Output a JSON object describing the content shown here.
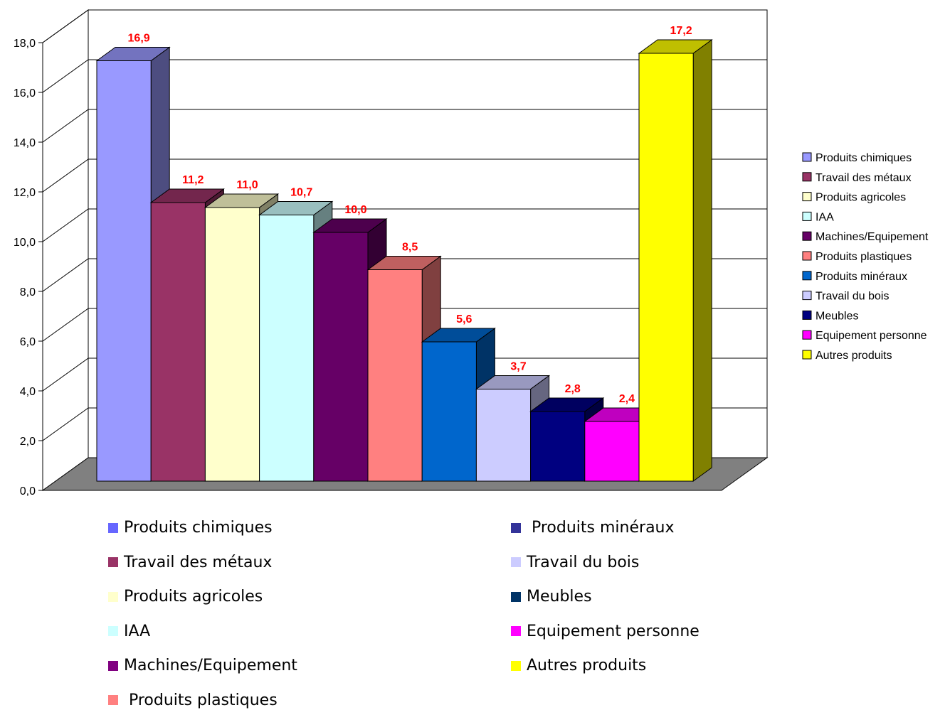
{
  "chart_data": {
    "type": "bar",
    "title": "",
    "xlabel": "",
    "ylabel": "",
    "ylim": [
      0,
      18
    ],
    "yticks": [
      "0,0",
      "2,0",
      "4,0",
      "6,0",
      "8,0",
      "10,0",
      "12,0",
      "14,0",
      "16,0",
      "18,0"
    ],
    "grid": true,
    "three_d": true,
    "categories": [
      "Produits chimiques",
      "Travail des métaux",
      "Produits agricoles",
      "IAA",
      "Machines/Equipement",
      "Produits plastiques",
      "Produits minéraux",
      "Travail du bois",
      "Meubles",
      "Equipement personne",
      "Autres produits"
    ],
    "values": [
      16.9,
      11.2,
      11.0,
      10.7,
      10.0,
      8.5,
      5.6,
      3.7,
      2.8,
      2.4,
      17.2
    ],
    "value_labels": [
      "16,9",
      "11,2",
      "11,0",
      "10,7",
      "10,0",
      "8,5",
      "5,6",
      "3,7",
      "2,8",
      "2,4",
      "17,2"
    ],
    "colors": {
      "front": [
        "#9999ff",
        "#993366",
        "#ffffcc",
        "#ccffff",
        "#660066",
        "#ff8080",
        "#0066cc",
        "#ccccff",
        "#000080",
        "#ff00ff",
        "#ffff00"
      ],
      "top": [
        "#7373bf",
        "#73264d",
        "#bfbf99",
        "#99bfbf",
        "#4d004d",
        "#bf6060",
        "#004d99",
        "#9999bf",
        "#000060",
        "#bf00bf",
        "#bfbf00"
      ],
      "side": [
        "#4d4d80",
        "#4d1a33",
        "#808066",
        "#668080",
        "#330033",
        "#804040",
        "#003366",
        "#666680",
        "#000040",
        "#800080",
        "#808000"
      ],
      "value_label": "#ff0000",
      "floor": "#808080"
    },
    "legend": {
      "placement": "right",
      "entries": [
        "Produits chimiques",
        "Travail des métaux",
        "Produits agricoles",
        "IAA",
        "Machines/Equipement",
        "Produits plastiques",
        "Produits minéraux",
        "Travail du bois",
        "Meubles",
        "Equipement personne",
        "Autres produits"
      ]
    }
  },
  "bottom_legend": {
    "left": [
      {
        "label": "Produits chimiques",
        "color": "#6666ff"
      },
      {
        "label": "Travail des métaux",
        "color": "#993366"
      },
      {
        "label": "Produits agricoles",
        "color": "#ffffcc"
      },
      {
        "label": "IAA",
        "color": "#ccffff"
      },
      {
        "label": "Machines/Equipement",
        "color": "#800080"
      },
      {
        "label": " Produits plastiques",
        "color": "#ff8080"
      }
    ],
    "right": [
      {
        "label": " Produits minéraux",
        "color": "#333399"
      },
      {
        "label": "Travail du bois",
        "color": "#ccccff"
      },
      {
        "label": "Meubles",
        "color": "#003366"
      },
      {
        "label": "Equipement personne",
        "color": "#ff00ff"
      },
      {
        "label": "Autres produits",
        "color": "#ffff00"
      }
    ]
  }
}
